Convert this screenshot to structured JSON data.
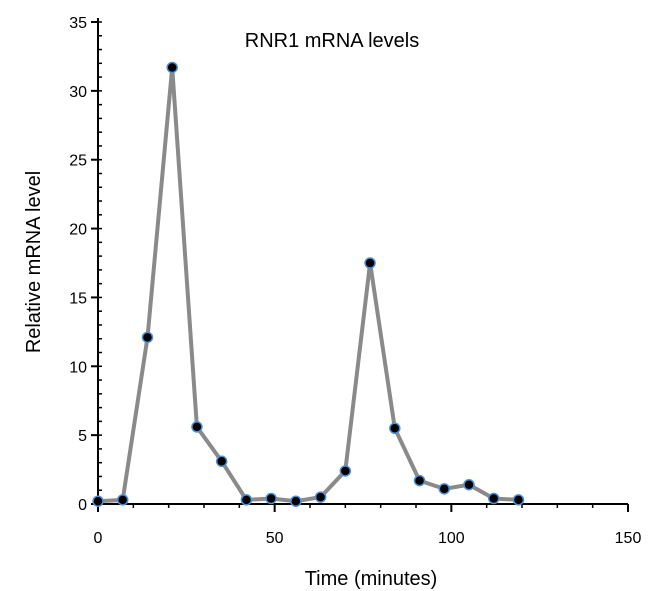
{
  "chart_data": {
    "type": "line",
    "title": "RNR1 mRNA levels",
    "xlabel": "Time (minutes)",
    "ylabel": "Relative mRNA level",
    "xlim": [
      0,
      150
    ],
    "ylim": [
      0,
      35
    ],
    "xticks": [
      0,
      50,
      100,
      150
    ],
    "yticks": [
      0,
      5,
      10,
      15,
      20,
      25,
      30,
      35
    ],
    "x_minor_step": 10,
    "y_minor_step": 1,
    "grid": false,
    "line_color": "#8a8a8a",
    "marker_color": "#000000",
    "marker_edge_color": "#4a90d9",
    "series": [
      {
        "x": [
          0,
          7,
          14,
          21,
          28,
          35,
          42,
          49,
          56,
          63,
          70,
          77,
          84,
          91,
          98,
          105,
          112,
          119
        ],
        "y": [
          0.2,
          0.3,
          12.1,
          31.7,
          5.6,
          3.1,
          0.3,
          0.4,
          0.2,
          0.5,
          2.4,
          17.5,
          5.5,
          1.7,
          1.1,
          1.4,
          0.4,
          0.3
        ]
      }
    ]
  }
}
